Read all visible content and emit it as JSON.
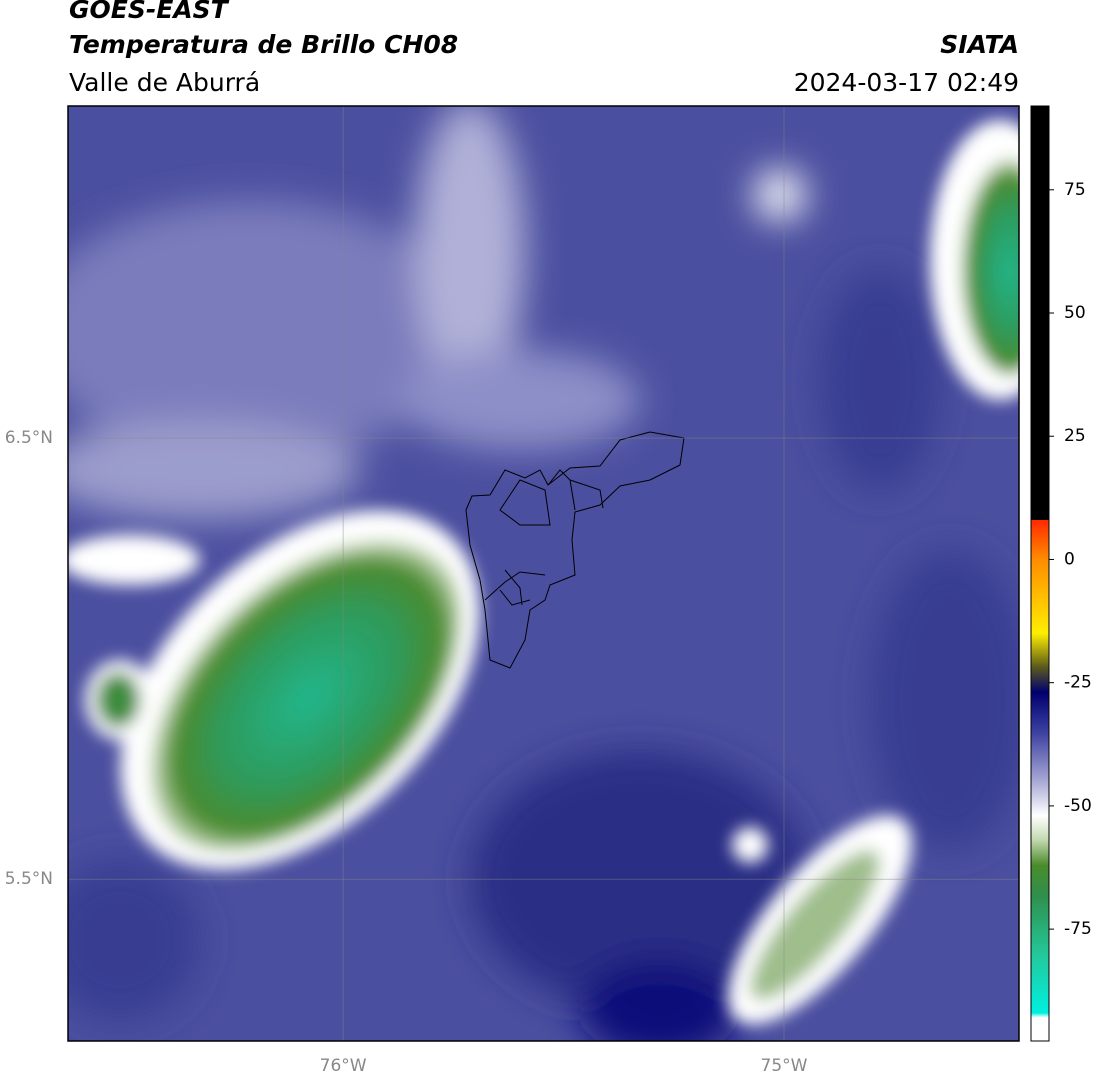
{
  "header": {
    "title": "GOES-EAST",
    "subtitle": "Temperatura de Brillo CH08",
    "region": "Valle de Aburrá",
    "source": "SIATA",
    "datetime": "2024-03-17 02:49"
  },
  "chart_data": {
    "type": "map",
    "xlim": [
      -76.624,
      -74.467
    ],
    "ylim": [
      5.133,
      7.253
    ],
    "xticks": [
      {
        "value": -76,
        "label": "76°W"
      },
      {
        "value": -75,
        "label": "75°W"
      }
    ],
    "yticks": [
      {
        "value": 6.5,
        "label": "6.5°N"
      },
      {
        "value": 5.5,
        "label": "5.5°N"
      }
    ],
    "grid": true,
    "colorbar": {
      "lim": [
        -97.7,
        92
      ],
      "ticks": [
        75,
        50,
        25,
        0,
        -25,
        -50,
        -75
      ]
    }
  }
}
